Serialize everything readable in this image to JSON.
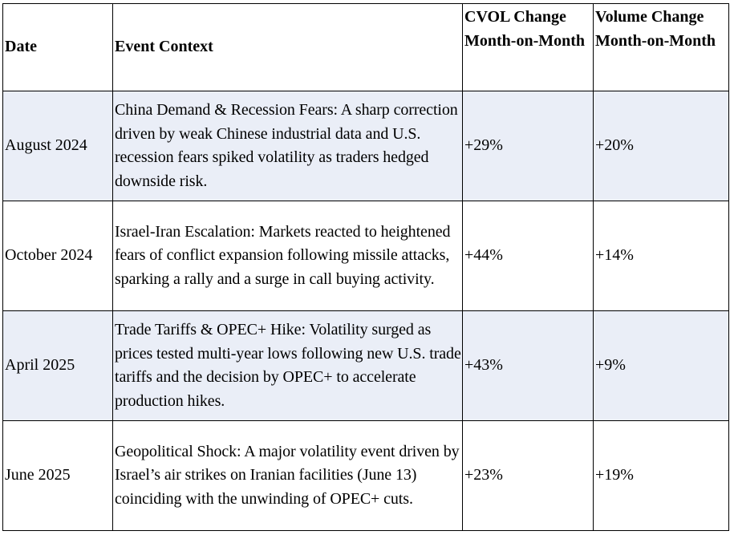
{
  "table": {
    "headers": {
      "date": "Date",
      "event": "Event Context",
      "cvol": "CVOL Change Month-on-Month",
      "volume": "Volume Change Month-on-Month"
    },
    "rows": [
      {
        "date": "August 2024",
        "event": "China Demand & Recession Fears: A sharp correction driven by weak Chinese industrial data and U.S. recession fears spiked volatility as traders hedged downside risk.",
        "cvol": "+29%",
        "volume": "+20%"
      },
      {
        "date": "October 2024",
        "event": "Israel-Iran Escalation: Markets reacted to heightened fears of conflict expansion following missile attacks, sparking a rally and a surge in call buying activity.",
        "cvol": "+44%",
        "volume": "+14%"
      },
      {
        "date": "April 2025",
        "event": "Trade Tariffs & OPEC+ Hike: Volatility surged as prices tested multi-year lows following new U.S. trade tariffs and the decision by OPEC+ to accelerate production hikes.",
        "cvol": "+43%",
        "volume": "+9%"
      },
      {
        "date": "June 2025",
        "event": "Geopolitical Shock: A major volatility event driven by Israel’s air strikes on Iranian facilities (June 13) coinciding with the unwinding of OPEC+ cuts.",
        "cvol": "+23%",
        "volume": "+19%"
      }
    ],
    "colors": {
      "shaded_row": "#eaeef7",
      "plain_row": "#ffffff",
      "border": "#000000"
    }
  }
}
